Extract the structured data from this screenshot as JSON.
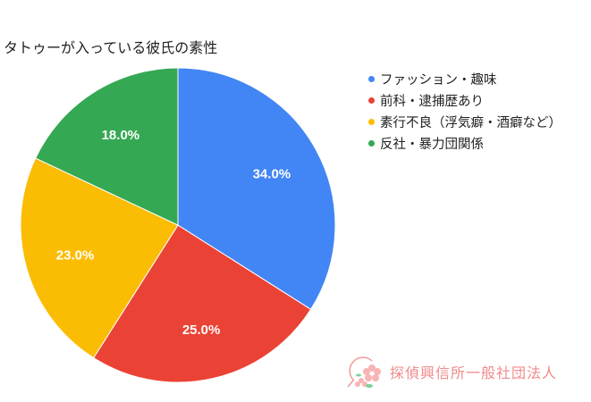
{
  "chart_data": {
    "type": "pie",
    "title": "タトゥーが入っている彼氏の素性",
    "categories": [
      "ファッション・趣味",
      "前科・逮捕歴あり",
      "素行不良（浮気癖・酒癖など）",
      "反社・暴力団関係"
    ],
    "values": [
      34.0,
      25.0,
      23.0,
      18.0
    ],
    "labels": [
      "34.0%",
      "25.0%",
      "23.0%",
      "18.0%"
    ],
    "colors": [
      "#4285F4",
      "#EA4335",
      "#FBBC04",
      "#34A853"
    ],
    "legend_position": "right",
    "start_angle_deg": 0,
    "direction": "clockwise"
  },
  "legend": {
    "items": [
      {
        "label": "ファッション・趣味",
        "color": "#4285F4"
      },
      {
        "label": "前科・逮捕歴あり",
        "color": "#EA4335"
      },
      {
        "label": "素行不良（浮気癖・酒癖など）",
        "color": "#FBBC04"
      },
      {
        "label": "反社・暴力団関係",
        "color": "#34A853"
      }
    ]
  },
  "watermark": {
    "text": "探偵興信所一般社団法人",
    "color": "#f08a8a"
  }
}
